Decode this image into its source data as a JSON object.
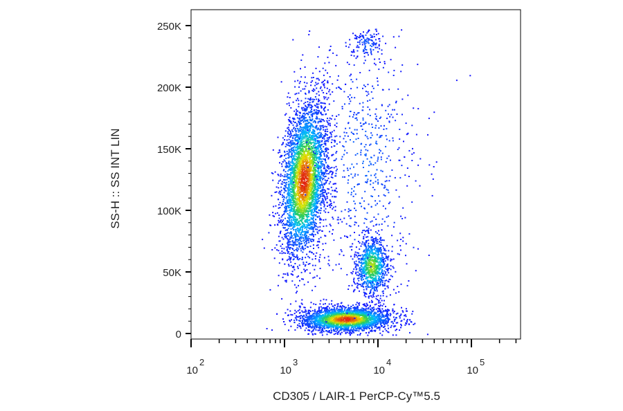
{
  "chart_data": {
    "type": "scatter",
    "title": "",
    "xlabel": "CD305 / LAIR-1 PerCP-Cy™5.5",
    "ylabel": "SS-H :: SS INT LIN",
    "x_scale": "log",
    "y_scale": "linear",
    "xlim": [
      300,
      400000
    ],
    "ylim": [
      -2000,
      258000
    ],
    "grid": false,
    "legend": "none",
    "color_scale": "density (blue → cyan → green → yellow → red)",
    "x_ticks": [
      {
        "value": 100,
        "base": "10",
        "exp": "2"
      },
      {
        "value": 1000,
        "base": "10",
        "exp": "3"
      },
      {
        "value": 10000,
        "base": "10",
        "exp": "4"
      },
      {
        "value": 100000,
        "base": "10",
        "exp": "5"
      }
    ],
    "y_ticks": [
      {
        "value": 0,
        "label": "0"
      },
      {
        "value": 50000,
        "label": "50K"
      },
      {
        "value": 100000,
        "label": "100K"
      },
      {
        "value": 150000,
        "label": "150K"
      },
      {
        "value": 200000,
        "label": "200K"
      },
      {
        "value": 250000,
        "label": "250K"
      }
    ],
    "populations": [
      {
        "center": [
          1600,
          125000
        ],
        "spread_log10": 0.12,
        "spread_y": 32000,
        "count": 3800,
        "tilt": 0.55,
        "density": "high"
      },
      {
        "center": [
          8500,
          55000
        ],
        "spread_log10": 0.09,
        "spread_y": 12000,
        "count": 900,
        "tilt": 0,
        "density": "medium"
      },
      {
        "center": [
          4500,
          12000
        ],
        "spread_log10": 0.25,
        "spread_y": 5000,
        "count": 2600,
        "tilt": 0.1,
        "density": "high"
      },
      {
        "center": [
          7000,
          140000
        ],
        "spread_log10": 0.3,
        "spread_y": 55000,
        "count": 700,
        "tilt": 0,
        "density": "sparse"
      },
      {
        "center": [
          7500,
          235000
        ],
        "spread_log10": 0.08,
        "spread_y": 7000,
        "count": 120,
        "tilt": 0,
        "density": "sparse"
      }
    ]
  },
  "colors": {
    "axis": "#000000",
    "density_low": "#1a1aff",
    "density_mid": "#22cc66",
    "density_high": "#e0201a"
  }
}
